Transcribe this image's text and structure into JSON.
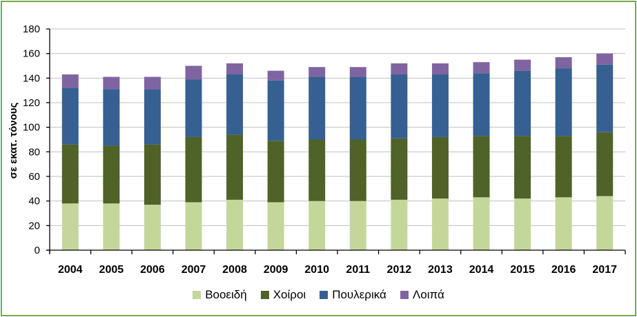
{
  "chart_data": {
    "type": "bar",
    "stacked": true,
    "title": "",
    "xlabel": "",
    "ylabel": "σε εκατ. τόνους",
    "ylim": [
      0,
      180
    ],
    "yticks": [
      0,
      20,
      40,
      60,
      80,
      100,
      120,
      140,
      160,
      180
    ],
    "grid": true,
    "legend_position": "bottom",
    "categories": [
      "2004",
      "2005",
      "2006",
      "2007",
      "2008",
      "2009",
      "2010",
      "2011",
      "2012",
      "2013",
      "2014",
      "2015",
      "2016",
      "2017"
    ],
    "series": [
      {
        "name": "Βοοειδή",
        "color": "#c4d79b",
        "values": [
          38,
          38,
          37,
          39,
          41,
          39,
          40,
          40,
          41,
          42,
          43,
          42,
          43,
          44
        ]
      },
      {
        "name": "Χοίροι",
        "color": "#4f6228",
        "values": [
          48,
          47,
          49,
          53,
          53,
          50,
          50,
          50,
          50,
          50,
          50,
          51,
          50,
          52
        ]
      },
      {
        "name": "Πουλερικά",
        "color": "#366092",
        "values": [
          46,
          46,
          45,
          47,
          49,
          49,
          51,
          51,
          52,
          51,
          51,
          53,
          55,
          55
        ]
      },
      {
        "name": "Λοιπά",
        "color": "#8064a2",
        "values": [
          11,
          10,
          10,
          11,
          9,
          8,
          8,
          8,
          9,
          9,
          9,
          9,
          9,
          9
        ]
      }
    ]
  }
}
